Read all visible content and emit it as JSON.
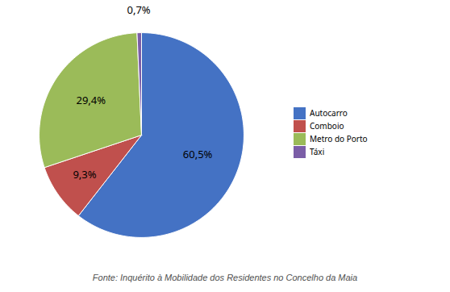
{
  "chart_data": {
    "type": "pie",
    "categories": [
      "Autocarro",
      "Comboio",
      "Metro do Porto",
      "Táxi"
    ],
    "values": [
      60.5,
      9.3,
      29.4,
      0.7
    ],
    "value_labels": [
      "60,5%",
      "9,3%",
      "29,4%",
      "0,7%"
    ],
    "colors": [
      "#4472C4",
      "#C0504D",
      "#9BBB59",
      "#7B5EA7"
    ],
    "data_labels": true,
    "legend": "right",
    "annotations": [
      "Fonte: Inquérito à Mobilidade dos Residentes no Concelho da Maia"
    ]
  }
}
